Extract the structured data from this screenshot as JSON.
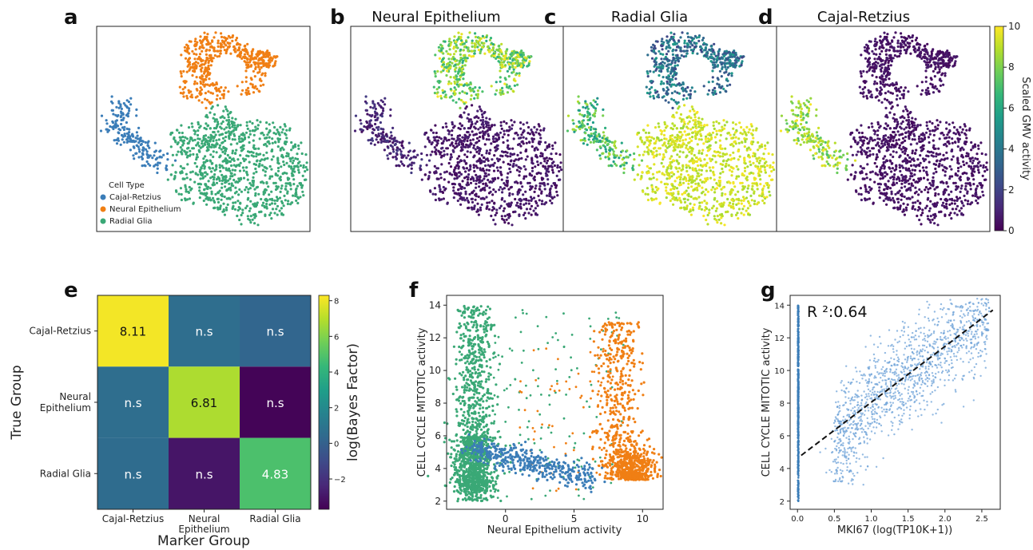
{
  "colors": {
    "cajal": "#3b7db8",
    "neural": "#f07f14",
    "radial": "#3aa876",
    "viridis": [
      "#440154",
      "#482878",
      "#3e4a89",
      "#31688e",
      "#26828e",
      "#1f9e89",
      "#35b779",
      "#6ece58",
      "#b5de2b",
      "#fde725"
    ],
    "point_blue": "#6fa3d8"
  },
  "panels": {
    "a": {
      "label": "a",
      "legend_title": "Cell Type",
      "legend": [
        "Cajal-Retzius",
        "Neural Epithelium",
        "Radial Glia"
      ]
    },
    "b": {
      "label": "b",
      "title": "Neural Epithelium"
    },
    "c": {
      "label": "c",
      "title": "Radial Glia"
    },
    "d": {
      "label": "d",
      "title": "Cajal-Retzius"
    },
    "e": {
      "label": "e"
    },
    "f": {
      "label": "f"
    },
    "g": {
      "label": "g",
      "annotation": "R ²:0.64"
    }
  },
  "chart_data": [
    {
      "id": "umap-activity-colorbar",
      "type": "heatmap",
      "label": "Scaled GMV activity",
      "range": [
        0,
        10
      ],
      "ticks": [
        "0",
        "2",
        "4",
        "6",
        "8",
        "10"
      ]
    },
    {
      "id": "panel-e-heatmap",
      "type": "heatmap",
      "xlabel": "Marker Group",
      "ylabel": "True Group",
      "columns": [
        "Cajal-Retzius",
        "Neural\nEpithelium",
        "Radial Glia"
      ],
      "rows": [
        "Cajal-Retzius",
        "Neural\nEpithelium",
        "Radial Glia"
      ],
      "values": [
        [
          8.11,
          0.6,
          0.2
        ],
        [
          0.6,
          6.81,
          -3.6
        ],
        [
          0.5,
          -3.0,
          4.83
        ]
      ],
      "labels": [
        [
          "8.11",
          "n.s",
          "n.s"
        ],
        [
          "n.s",
          "6.81",
          "n.s"
        ],
        [
          "n.s",
          "n.s",
          "4.83"
        ]
      ],
      "colorbar": {
        "label": "log(Bayes Factor)",
        "range": [
          -3.7,
          8.3
        ],
        "ticks": [
          "−2",
          "0",
          "2",
          "4",
          "6",
          "8"
        ]
      }
    },
    {
      "id": "panel-f-scatter",
      "type": "scatter",
      "xlabel": "Neural Epithelium activity",
      "ylabel": "CELL CYCLE MITOTIC activity",
      "xlim": [
        -4.3,
        11.5
      ],
      "ylim": [
        1.5,
        14.6
      ],
      "xticks": [
        "0",
        "5",
        "10"
      ],
      "yticks": [
        "2",
        "4",
        "6",
        "8",
        "10",
        "12",
        "14"
      ],
      "clusters": [
        {
          "group": "Radial Glia",
          "x_center": -2.3,
          "y_range": [
            2,
            14
          ],
          "x_spread": 0.9
        },
        {
          "group": "Neural Epithelium",
          "x_center": 8.5,
          "y_range": [
            2.5,
            13
          ],
          "x_spread": 1.1
        },
        {
          "group": "Cajal-Retzius",
          "x_center": -1.0,
          "y_range": [
            3.5,
            5.8
          ],
          "x_spread": 1.2
        }
      ]
    },
    {
      "id": "panel-g-scatter",
      "type": "scatter",
      "xlabel": "MKI67 (log(TP10K+1))",
      "ylabel": "CELL CYCLE MITOTIC activity",
      "xlim": [
        -0.1,
        2.75
      ],
      "ylim": [
        1.5,
        14.6
      ],
      "xticks": [
        "0.0",
        "0.5",
        "1.0",
        "1.5",
        "2.0",
        "2.5"
      ],
      "yticks": [
        "2",
        "4",
        "6",
        "8",
        "10",
        "12",
        "14"
      ],
      "fit_line": {
        "x": [
          0.05,
          2.65
        ],
        "y": [
          4.8,
          13.7
        ],
        "style": "dashed"
      },
      "r_squared": 0.64
    }
  ]
}
